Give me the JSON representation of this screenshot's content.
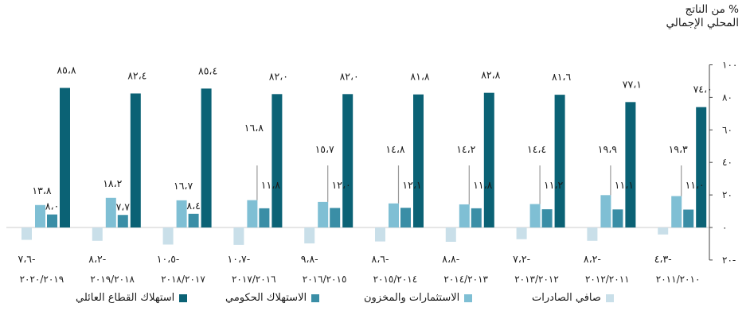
{
  "chart_data": {
    "type": "bar",
    "ylabel_lines": [
      "% من الناتج",
      "المحلي الإجمالي"
    ],
    "yticks": [
      -20,
      0,
      20,
      40,
      60,
      80,
      100
    ],
    "ytick_labels": [
      "٢٠-",
      "٠",
      "٢٠",
      "٤٠",
      "٦٠",
      "٨٠",
      "١٠٠"
    ],
    "ylim": [
      -20,
      100
    ],
    "categories": [
      "٢٠٢٠/٢٠١٩",
      "٢٠١٩/٢٠١٨",
      "٢٠١٨/٢٠١٧",
      "٢٠١٧/٢٠١٦",
      "٢٠١٦/٢٠١٥",
      "٢٠١٥/٢٠١٤",
      "٢٠١٤/٢٠١٣",
      "٢٠١٣/٢٠١٢",
      "٢٠١٢/٢٠١١",
      "٢٠١١/٢٠١٠"
    ],
    "series": [
      {
        "name": "صافي الصادرات",
        "color": "#c9dfe9",
        "values": [
          -7.6,
          -8.2,
          -10.5,
          -10.7,
          -9.8,
          -8.6,
          -8.8,
          -7.2,
          -8.2,
          -4.3
        ],
        "labels": [
          "٧،٦-",
          "٨،٢-",
          "١٠،٥-",
          "١٠،٧-",
          "٩،٨-",
          "٨،٦-",
          "٨،٨-",
          "٧،٢-",
          "٨،٢-",
          "٤،٣-"
        ]
      },
      {
        "name": "الاستثمارات والمخزون",
        "color": "#7fbfd4",
        "values": [
          13.8,
          18.2,
          16.7,
          16.8,
          15.7,
          14.8,
          14.2,
          14.4,
          19.9,
          19.3
        ],
        "labels": [
          "١٣،٨",
          "١٨،٢",
          "١٦،٧",
          "١٦،٨",
          "١٥،٧",
          "١٤،٨",
          "١٤،٢",
          "١٤،٤",
          "١٩،٩",
          "١٩،٣"
        ]
      },
      {
        "name": "الاستهلاك الحكومي",
        "color": "#3a8ea6",
        "values": [
          8.0,
          7.7,
          8.4,
          11.8,
          12.0,
          12.1,
          11.8,
          11.2,
          11.1,
          11.0
        ],
        "labels": [
          "٨،٠",
          "٧،٧",
          "٨،٤",
          "١١،٨",
          "١٢،٠",
          "١٢،١",
          "١١،٨",
          "١١،٢",
          "١١،١",
          "١١،٠"
        ]
      },
      {
        "name": "استهلاك القطاع العائلي",
        "color": "#0b6275",
        "values": [
          85.8,
          82.4,
          85.4,
          82.0,
          82.0,
          81.8,
          82.8,
          81.6,
          77.1,
          74.0
        ],
        "labels": [
          "٨٥،٨",
          "٨٢،٤",
          "٨٥،٤",
          "٨٢،٠",
          "٨٢،٠",
          "٨١،٨",
          "٨٢،٨",
          "٨١،٦",
          "٧٧،١",
          "٧٤،٠"
        ]
      }
    ],
    "legend_position": "bottom",
    "grid": false
  }
}
